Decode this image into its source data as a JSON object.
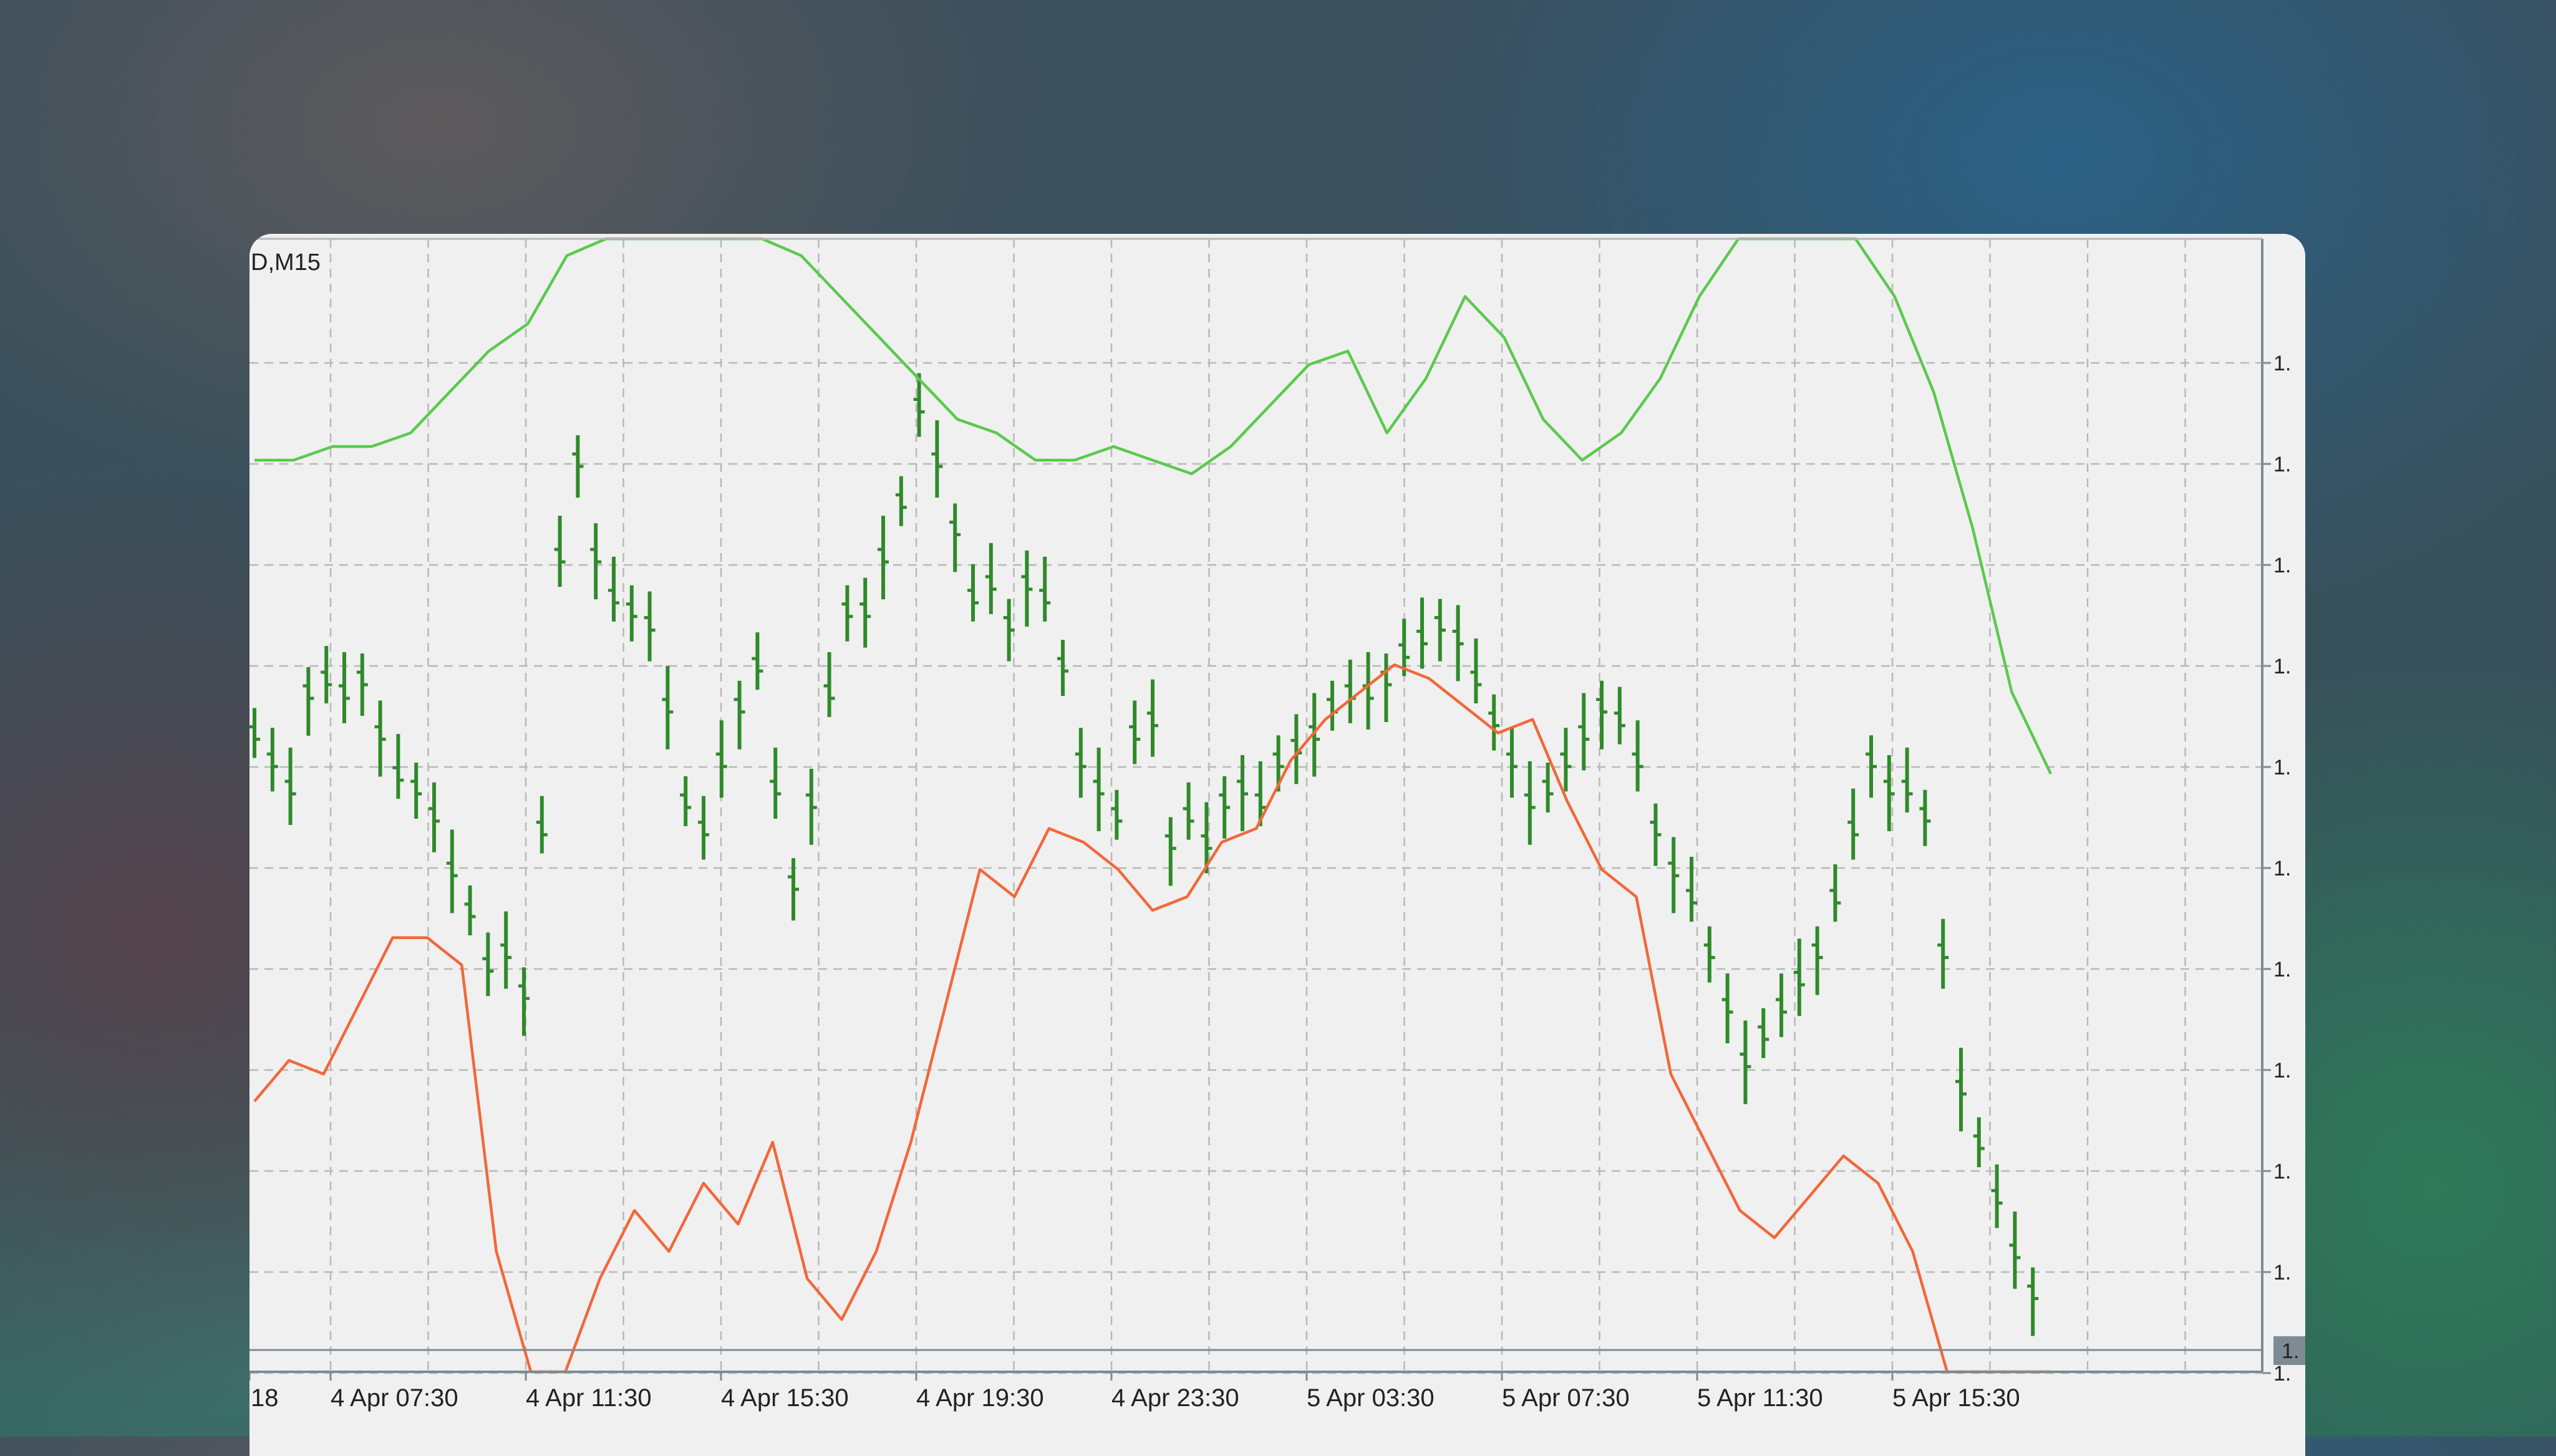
{
  "window": {
    "symbol_label": "D,M15"
  },
  "colors": {
    "background": "#f0f0f0",
    "grid": "#b8b8b8",
    "bars": "#2f8a2a",
    "orange_line": "#f2683a",
    "green_line": "#5bc94e",
    "axis": "#7d8b95",
    "price_badge": "#7d8b95"
  },
  "chart_data": {
    "type": "line",
    "timeframe": "M15",
    "x_tick_labels": [
      "18",
      "4 Apr 07:30",
      "4 Apr 11:30",
      "4 Apr 15:30",
      "4 Apr 19:30",
      "4 Apr 23:30",
      "5 Apr 03:30",
      "5 Apr 07:30",
      "5 Apr 11:30",
      "5 Apr 15:30"
    ],
    "y_tick_labels": [
      "1.",
      "1.",
      "1.",
      "1.",
      "1.",
      "1.",
      "1.",
      "1.",
      "1.",
      "1.",
      "1."
    ],
    "current_price_label": "1.",
    "grid": true,
    "series": [
      {
        "kind": "price_bars",
        "values": [
          0.6,
          0.58,
          0.56,
          0.63,
          0.64,
          0.63,
          0.64,
          0.6,
          0.57,
          0.56,
          0.54,
          0.5,
          0.47,
          0.43,
          0.44,
          0.41,
          0.53,
          0.73,
          0.8,
          0.73,
          0.7,
          0.69,
          0.68,
          0.62,
          0.55,
          0.53,
          0.58,
          0.62,
          0.65,
          0.56,
          0.49,
          0.55,
          0.63,
          0.69,
          0.69,
          0.73,
          0.77,
          0.84,
          0.8,
          0.75,
          0.7,
          0.71,
          0.68,
          0.71,
          0.7,
          0.65,
          0.58,
          0.56,
          0.54,
          0.6,
          0.61,
          0.52,
          0.54,
          0.52,
          0.55,
          0.56,
          0.55,
          0.58,
          0.59,
          0.6,
          0.62,
          0.63,
          0.63,
          0.64,
          0.66,
          0.67,
          0.68,
          0.67,
          0.64,
          0.61,
          0.58,
          0.55,
          0.56,
          0.58,
          0.6,
          0.62,
          0.61,
          0.58,
          0.53,
          0.5,
          0.48,
          0.44,
          0.4,
          0.36,
          0.38,
          0.4,
          0.42,
          0.44,
          0.48,
          0.53,
          0.58,
          0.56,
          0.56,
          0.54,
          0.44,
          0.34,
          0.3,
          0.26,
          0.22,
          0.19
        ],
        "min": 0.15,
        "max": 0.88
      },
      {
        "kind": "line",
        "values": [
          0.8,
          0.8,
          0.81,
          0.81,
          0.82,
          0.85,
          0.88,
          0.9,
          0.95,
          1.0,
          1.04,
          1.08,
          1.03,
          0.98,
          0.95,
          0.92,
          0.89,
          0.86,
          0.83,
          0.82,
          0.8,
          0.8,
          0.81,
          0.8,
          0.79,
          0.81,
          0.84,
          0.87,
          0.88,
          0.82,
          0.86,
          0.92,
          0.89,
          0.83,
          0.8,
          0.82,
          0.86,
          0.92,
          1.0,
          1.05,
          1.02,
          0.97,
          0.92,
          0.85,
          0.75,
          0.63,
          0.57
        ],
        "min": 0.15,
        "max": 0.88
      },
      {
        "kind": "line",
        "values": [
          0.33,
          0.36,
          0.35,
          0.4,
          0.45,
          0.45,
          0.43,
          0.22,
          0.08,
          0.12,
          0.2,
          0.25,
          0.22,
          0.27,
          0.24,
          0.3,
          0.2,
          0.17,
          0.22,
          0.3,
          0.4,
          0.5,
          0.48,
          0.53,
          0.52,
          0.5,
          0.47,
          0.48,
          0.52,
          0.53,
          0.58,
          0.61,
          0.63,
          0.65,
          0.64,
          0.62,
          0.6,
          0.61,
          0.55,
          0.5,
          0.48,
          0.35,
          0.3,
          0.25,
          0.23,
          0.26,
          0.29,
          0.27,
          0.22,
          0.12,
          0.1,
          0.08,
          0.05
        ],
        "min": 0.15,
        "max": 0.88
      }
    ]
  }
}
